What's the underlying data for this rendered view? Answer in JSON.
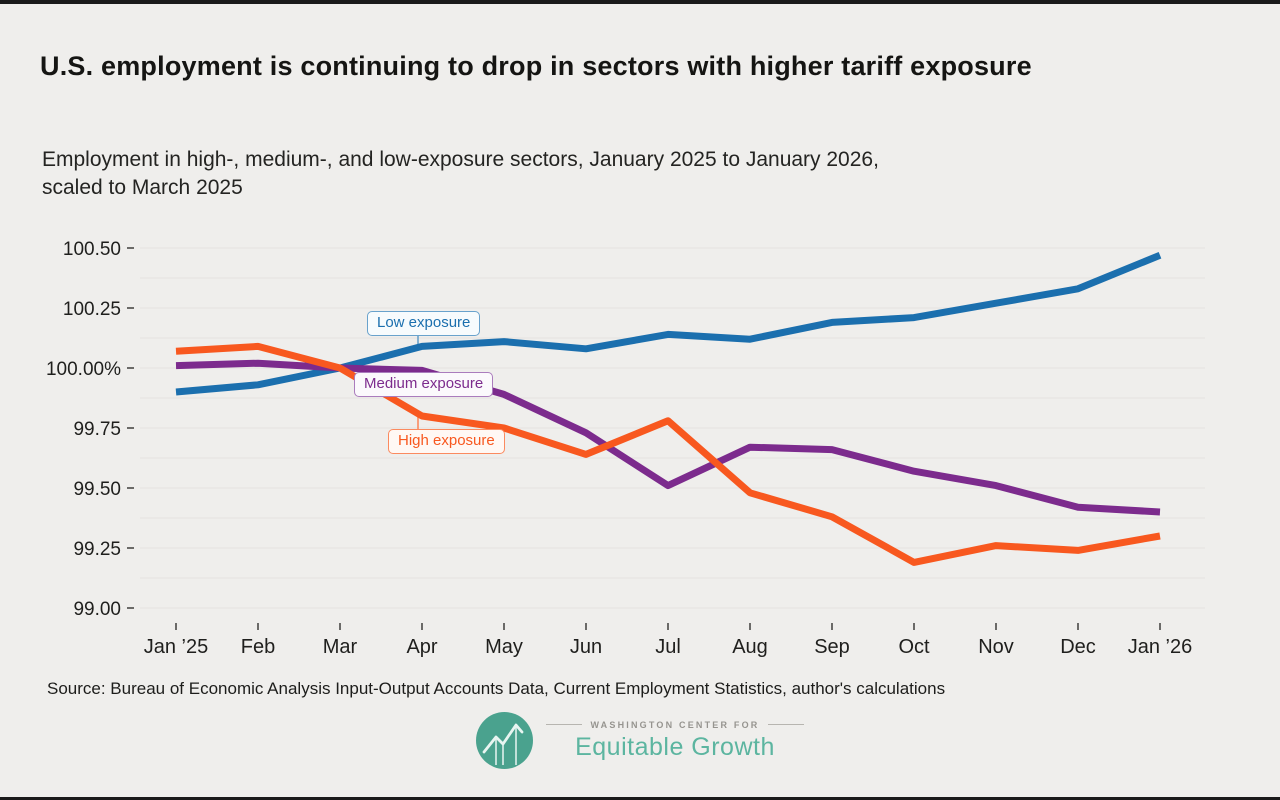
{
  "page": {
    "background": "#efeeec",
    "border_color": "#1a1a1a"
  },
  "header": {
    "title": "U.S. employment is continuing to drop in sectors with higher tariff exposure",
    "subtitle_line1": "Employment in high-, medium-, and low-exposure sectors, January 2025 to January 2026,",
    "subtitle_line2": "scaled to March 2025"
  },
  "chart_data": {
    "type": "line",
    "title": "U.S. employment is continuing to drop in sectors with higher tariff exposure",
    "subtitle": "Employment in high-, medium-, and low-exposure sectors, January 2025 to January 2026, scaled to March 2025",
    "categories": [
      "Jan ’25",
      "Feb",
      "Mar",
      "Apr",
      "May",
      "Jun",
      "Jul",
      "Aug",
      "Sep",
      "Oct",
      "Nov",
      "Dec",
      "Jan ’26"
    ],
    "series": [
      {
        "name": "Low exposure",
        "color": "#1b6fae",
        "values": [
          99.9,
          99.93,
          100.0,
          100.09,
          100.11,
          100.08,
          100.14,
          100.12,
          100.19,
          100.21,
          100.27,
          100.33,
          100.47
        ]
      },
      {
        "name": "Medium exposure",
        "color": "#7c2b8d",
        "values": [
          100.01,
          100.02,
          100.0,
          99.99,
          99.89,
          99.73,
          99.51,
          99.67,
          99.66,
          99.57,
          99.51,
          99.42,
          99.4
        ]
      },
      {
        "name": "High exposure",
        "color": "#f8581f",
        "values": [
          100.07,
          100.09,
          100.0,
          99.8,
          99.75,
          99.64,
          99.78,
          99.48,
          99.38,
          99.19,
          99.26,
          99.24,
          99.3
        ]
      }
    ],
    "y_axis": {
      "min": 99.0,
      "max": 100.5,
      "gridline_step": 0.125,
      "ticks": [
        {
          "label": "100.50",
          "value": 100.5
        },
        {
          "label": "100.25",
          "value": 100.25
        },
        {
          "label": "100.00%",
          "value": 100.0
        },
        {
          "label": "99.75",
          "value": 99.75
        },
        {
          "label": "99.50",
          "value": 99.5
        },
        {
          "label": "99.25",
          "value": 99.25
        },
        {
          "label": "99.00",
          "value": 99.0
        }
      ]
    },
    "grid": true,
    "legend_position": "inline-callouts"
  },
  "footer": {
    "source": "Source: Bureau of Economic Analysis Input-Output Accounts Data, Current Employment Statistics, author's calculations",
    "logo_small": "WASHINGTON CENTER FOR",
    "logo_name": "Equitable Growth"
  }
}
